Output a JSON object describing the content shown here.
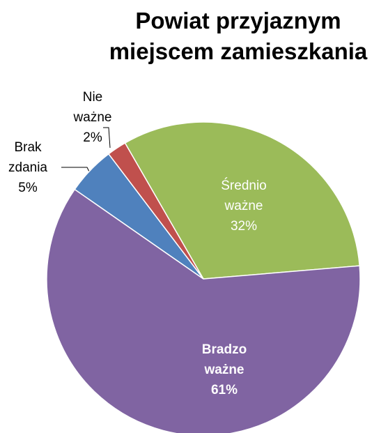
{
  "chart_data": {
    "type": "pie",
    "title": "Powiat przyjaznym miejscem zamieszkania",
    "categories": [
      "Średnio ważne",
      "Bradzo ważne",
      "Brak zdania",
      "Nie ważne"
    ],
    "values": [
      32,
      61,
      5,
      2
    ],
    "value_labels": [
      "32%",
      "61%",
      "5%",
      "2%"
    ],
    "colors": [
      "#9bbb59",
      "#8064a2",
      "#4f81bd",
      "#c0504d"
    ]
  }
}
